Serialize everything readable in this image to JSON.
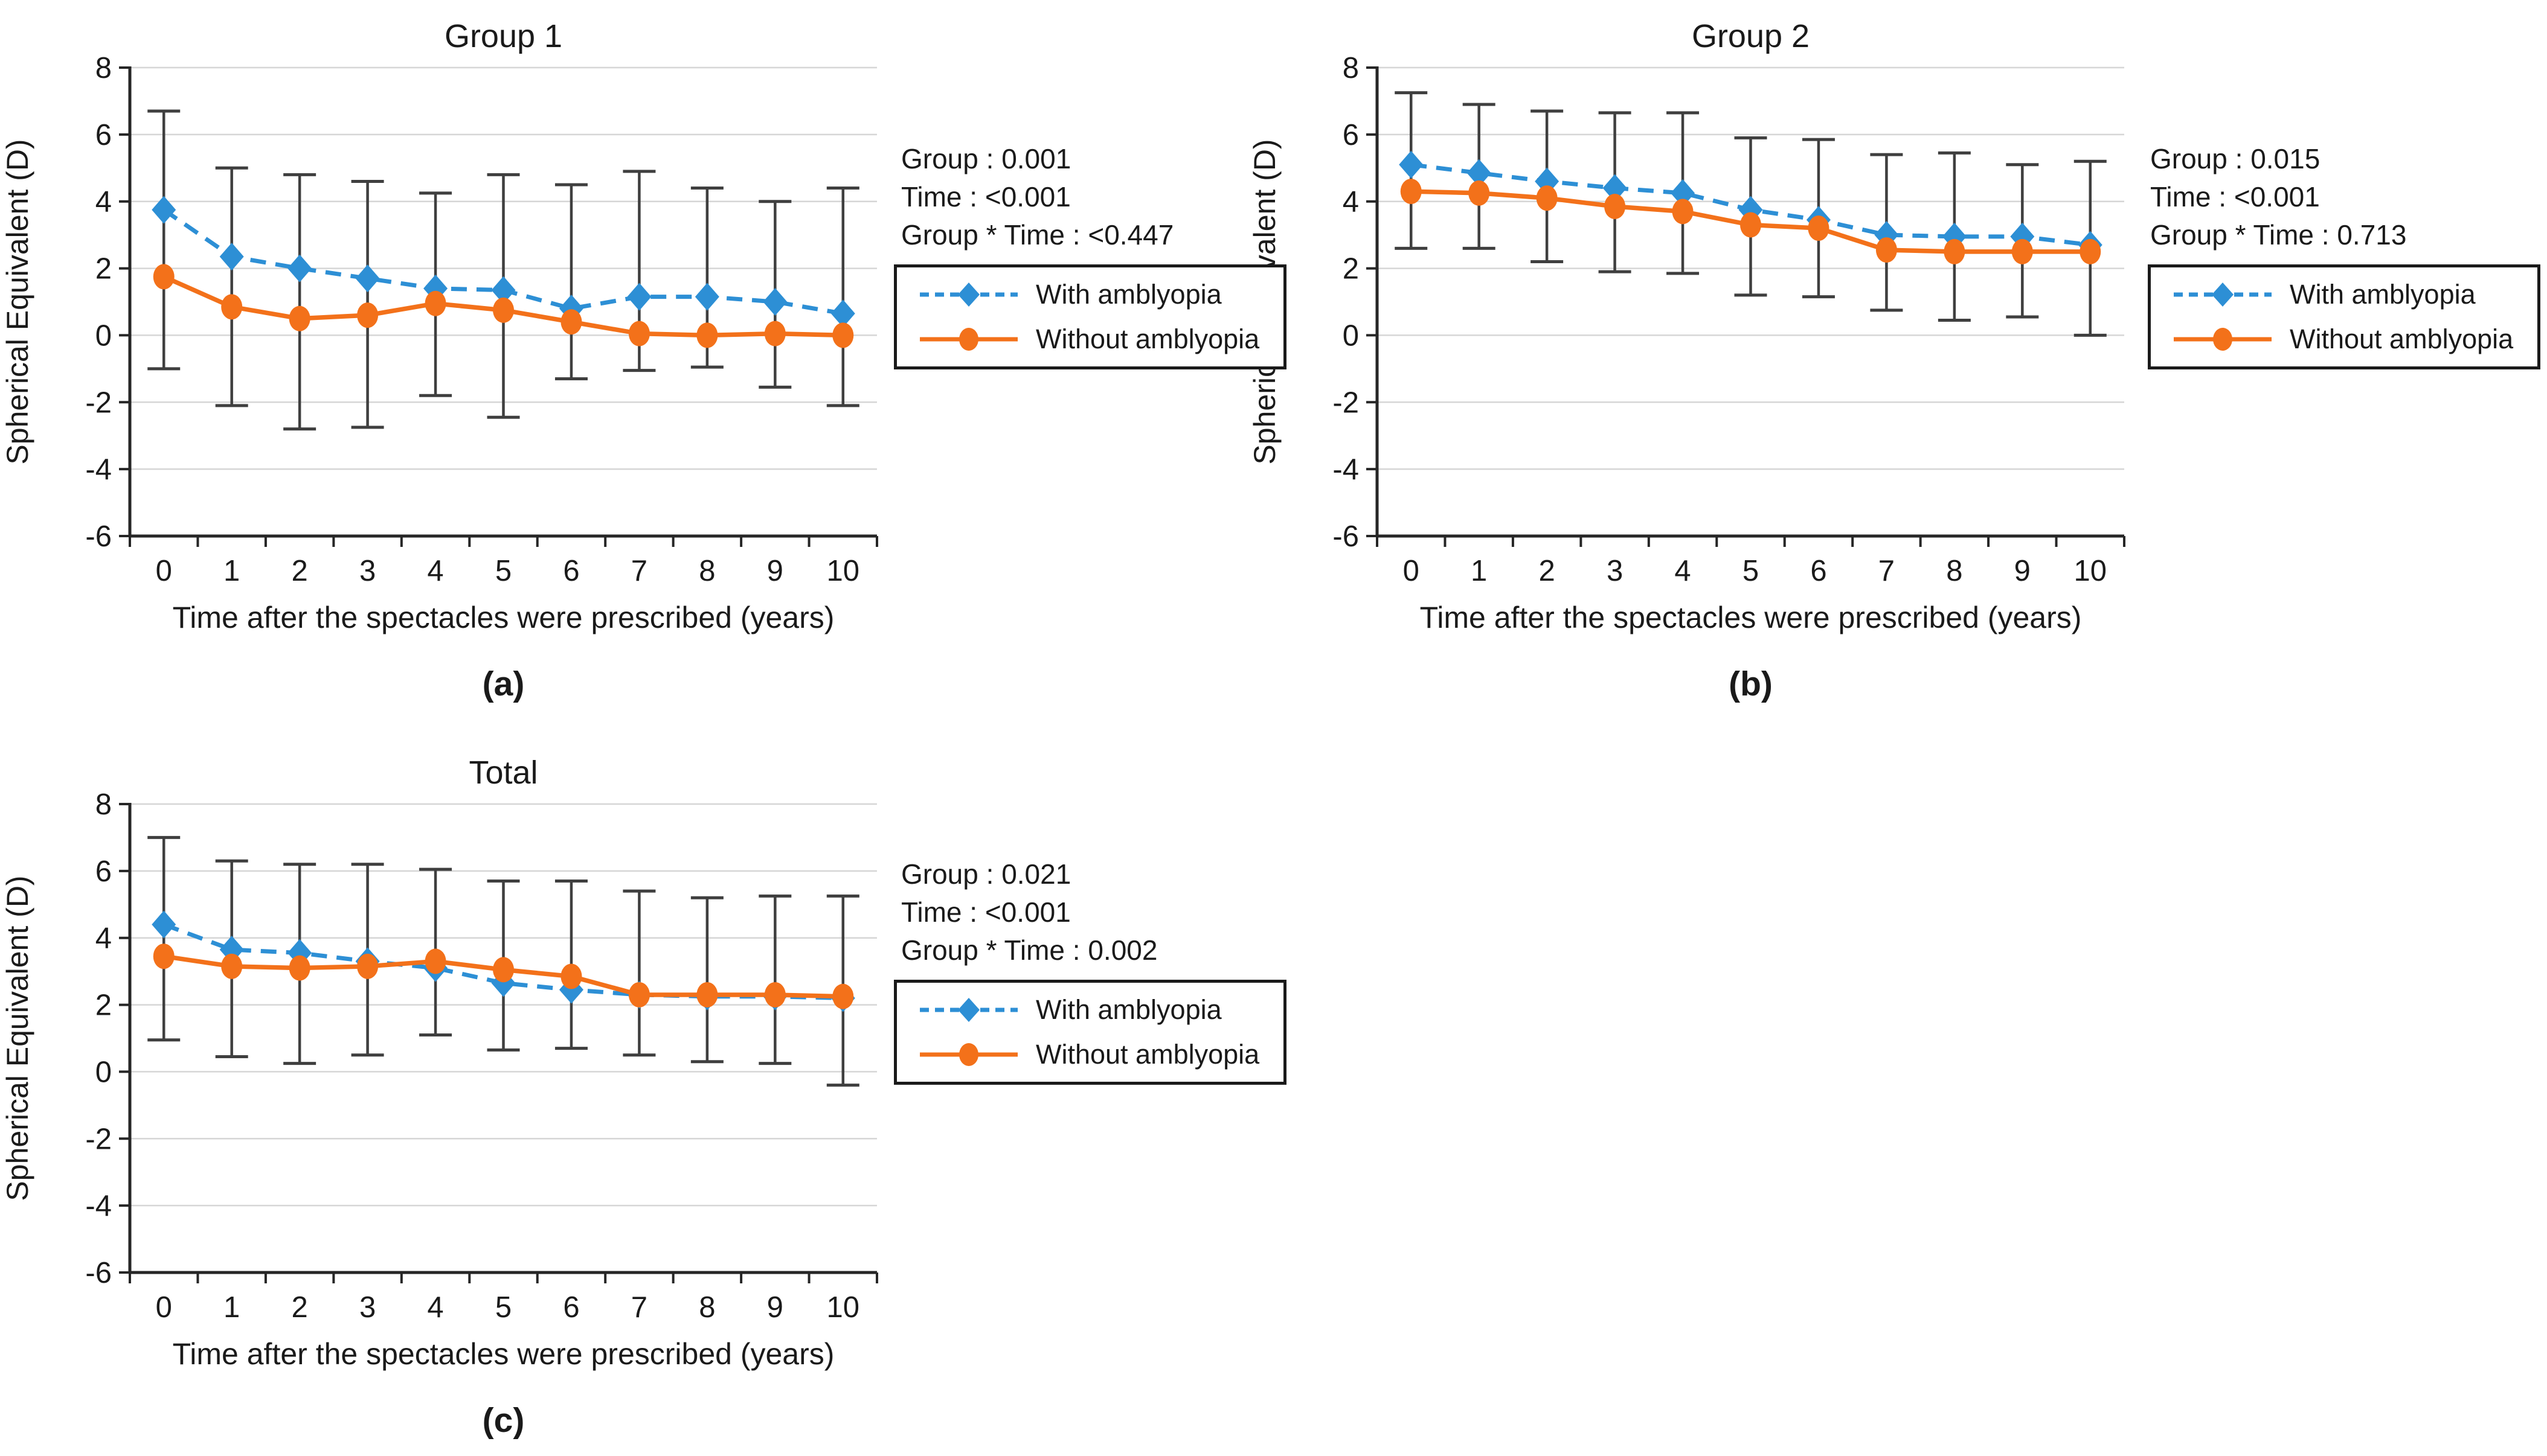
{
  "figure": {
    "y_axis_label": "Spherical Equivalent (D)",
    "x_axis_label": "Time after the spectacles were prescribed (years)",
    "y_ticks": [
      8,
      6,
      4,
      2,
      0,
      -2,
      -4,
      -6
    ],
    "x_ticks": [
      "0",
      "1",
      "2",
      "3",
      "4",
      "5",
      "6",
      "7",
      "8",
      "9",
      "10"
    ],
    "colors": {
      "with_amblyopia": "#2D8FD5",
      "without_amblyopia": "#F3711A",
      "error_bar": "#3F3F3F",
      "gridline": "#D6D6D6",
      "axis": "#262626",
      "text": "#1A1A1A"
    },
    "legend": {
      "items": [
        {
          "label": "With amblyopia",
          "marker": "diamond",
          "line_style": "dashed",
          "color_key": "with_amblyopia"
        },
        {
          "label": "Without amblyopia",
          "marker": "circle",
          "line_style": "solid",
          "color_key": "without_amblyopia"
        }
      ]
    }
  },
  "chart_data": [
    {
      "type": "line",
      "title": "Group 1",
      "caption": "(a)",
      "stats": [
        "Group : 0.001",
        "Time : <0.001",
        "Group * Time : <0.447"
      ],
      "xlabel": "Time after the spectacles were prescribed (years)",
      "ylabel": "Spherical Equivalent (D)",
      "ylim": [
        -6,
        8
      ],
      "x": [
        0,
        1,
        2,
        3,
        4,
        5,
        6,
        7,
        8,
        9,
        10
      ],
      "series": [
        {
          "name": "With amblyopia",
          "values": [
            3.75,
            2.35,
            2.0,
            1.7,
            1.4,
            1.35,
            0.8,
            1.15,
            1.15,
            1.0,
            0.65
          ]
        },
        {
          "name": "Without amblyopia",
          "values": [
            1.75,
            0.85,
            0.5,
            0.6,
            0.95,
            0.75,
            0.4,
            0.05,
            0.0,
            0.05,
            0.0
          ]
        }
      ],
      "error_high": [
        6.7,
        5.0,
        4.8,
        4.6,
        4.25,
        4.8,
        4.5,
        4.9,
        4.4,
        4.0,
        4.4
      ],
      "error_low": [
        -1.0,
        -2.1,
        -2.8,
        -2.75,
        -1.8,
        -2.45,
        -1.3,
        -1.05,
        -0.95,
        -1.55,
        -2.1
      ]
    },
    {
      "type": "line",
      "title": "Group 2",
      "caption": "(b)",
      "stats": [
        "Group : 0.015",
        "Time : <0.001",
        "Group * Time : 0.713"
      ],
      "xlabel": "Time after the spectacles were prescribed (years)",
      "ylabel": "Spherical Equivalent (D)",
      "ylim": [
        -6,
        8
      ],
      "x": [
        0,
        1,
        2,
        3,
        4,
        5,
        6,
        7,
        8,
        9,
        10
      ],
      "series": [
        {
          "name": "With amblyopia",
          "values": [
            5.1,
            4.85,
            4.6,
            4.4,
            4.25,
            3.75,
            3.45,
            3.0,
            2.95,
            2.95,
            2.7
          ]
        },
        {
          "name": "Without amblyopia",
          "values": [
            4.3,
            4.25,
            4.1,
            3.85,
            3.7,
            3.3,
            3.2,
            2.55,
            2.5,
            2.5,
            2.5
          ]
        }
      ],
      "error_high": [
        7.25,
        6.9,
        6.7,
        6.65,
        6.65,
        5.9,
        5.85,
        5.4,
        5.45,
        5.1,
        5.2
      ],
      "error_low": [
        2.6,
        2.6,
        2.2,
        1.9,
        1.85,
        1.2,
        1.15,
        0.75,
        0.45,
        0.55,
        0.0
      ]
    },
    {
      "type": "line",
      "title": "Total",
      "caption": "(c)",
      "stats": [
        "Group : 0.021",
        "Time : <0.001",
        "Group * Time : 0.002"
      ],
      "xlabel": "Time after the spectacles were prescribed (years)",
      "ylabel": "Spherical Equivalent (D)",
      "ylim": [
        -6,
        8
      ],
      "x": [
        0,
        1,
        2,
        3,
        4,
        5,
        6,
        7,
        8,
        9,
        10
      ],
      "series": [
        {
          "name": "With amblyopia",
          "values": [
            4.4,
            3.65,
            3.55,
            3.3,
            3.1,
            2.65,
            2.45,
            2.3,
            2.25,
            2.25,
            2.2
          ]
        },
        {
          "name": "Without amblyopia",
          "values": [
            3.45,
            3.15,
            3.1,
            3.15,
            3.3,
            3.05,
            2.85,
            2.3,
            2.3,
            2.3,
            2.25
          ]
        }
      ],
      "error_high": [
        7.0,
        6.3,
        6.2,
        6.2,
        6.05,
        5.7,
        5.7,
        5.4,
        5.2,
        5.25,
        5.25
      ],
      "error_low": [
        0.95,
        0.45,
        0.25,
        0.5,
        1.1,
        0.65,
        0.7,
        0.5,
        0.3,
        0.25,
        -0.4
      ]
    }
  ]
}
